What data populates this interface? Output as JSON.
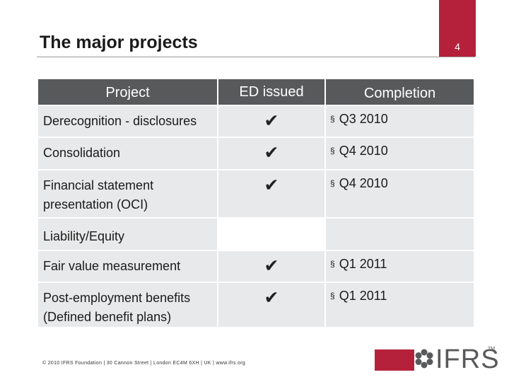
{
  "slide": {
    "title": "The major projects",
    "page_number": "4"
  },
  "table": {
    "headers": {
      "project": "Project",
      "ed_issued": "ED issued",
      "completion": "Completion"
    },
    "check_symbol": "✔",
    "bullet_symbol": "§",
    "rows": [
      {
        "project": "Derecognition - disclosures",
        "ed_issued": true,
        "completion": "Q3 2010"
      },
      {
        "project": "Consolidation",
        "ed_issued": true,
        "completion": "Q4 2010"
      },
      {
        "project": "Financial statement presentation (OCI)",
        "ed_issued": true,
        "completion": "Q4 2010"
      },
      {
        "project": "Liability/Equity",
        "ed_issued": false,
        "completion": ""
      },
      {
        "project": "Fair value measurement",
        "ed_issued": true,
        "completion": "Q1 2011"
      },
      {
        "project": "Post-employment benefits (Defined benefit plans)",
        "ed_issued": true,
        "completion": "Q1 2011"
      }
    ]
  },
  "footer": {
    "text": "© 2010 IFRS Foundation | 30 Cannon Street | London EC4M 6XH | UK | www.ifrs.org"
  },
  "logo": {
    "text": "IFRS",
    "trademark": "TM"
  },
  "colors": {
    "brand_red": "#b5213b",
    "header_gray": "#58595b",
    "cell_gray": "#e8e9ea"
  }
}
